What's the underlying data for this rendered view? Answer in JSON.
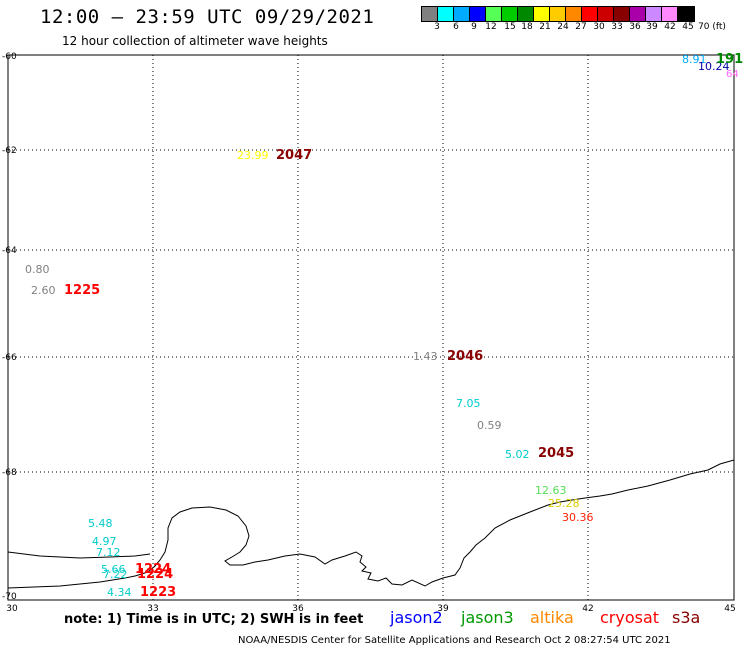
{
  "header": {
    "title": "12:00 – 23:59 UTC 09/29/2021",
    "subtitle": "12 hour collection of altimeter wave heights"
  },
  "colorbar": {
    "colors": [
      "#808080",
      "#00ffff",
      "#00aaff",
      "#0000ff",
      "#55ff55",
      "#00cc00",
      "#008800",
      "#ffff00",
      "#ffcc00",
      "#ff8800",
      "#ff0000",
      "#cc0000",
      "#880000",
      "#aa00aa",
      "#cc88ff",
      "#ff88ff",
      "#000000"
    ],
    "labels": [
      "3",
      "6",
      "9",
      "12",
      "15",
      "18",
      "21",
      "24",
      "27",
      "30",
      "33",
      "36",
      "39",
      "42",
      "45",
      "70 (ft)"
    ]
  },
  "axes": {
    "y_labels": [
      "-60",
      "-62",
      "-64",
      "-66",
      "-68",
      "-70"
    ],
    "x_labels": [
      "30",
      "33",
      "36",
      "39",
      "42",
      "45"
    ]
  },
  "observations": [
    {
      "text": "8.91",
      "color": "#00aaff"
    },
    {
      "text": "10.24",
      "color": "#0000aa"
    },
    {
      "text": "64",
      "color": "#ff66ff"
    },
    {
      "text": "23.99",
      "color": "#ffff00"
    },
    {
      "text": "0.80",
      "color": "#808080"
    },
    {
      "text": "2.60",
      "color": "#808080"
    },
    {
      "text": "1.43",
      "color": "#808080"
    },
    {
      "text": "7.05",
      "color": "#00cccc"
    },
    {
      "text": "0.59",
      "color": "#808080"
    },
    {
      "text": "5.02",
      "color": "#00cccc"
    },
    {
      "text": "12.63",
      "color": "#55dd55"
    },
    {
      "text": "25.28",
      "color": "#ddcc00"
    },
    {
      "text": "30.36",
      "color": "#ff2200"
    },
    {
      "text": "5.48",
      "color": "#00cccc"
    },
    {
      "text": "4.97",
      "color": "#00cccc"
    },
    {
      "text": "7.12",
      "color": "#00cccc"
    },
    {
      "text": "5.66",
      "color": "#00cccc"
    },
    {
      "text": "7.22",
      "color": "#00cccc"
    },
    {
      "text": "4.34",
      "color": "#00cccc"
    }
  ],
  "time_tags": [
    {
      "text": "191",
      "color": "#008800"
    },
    {
      "text": "2047",
      "color": "#880000"
    },
    {
      "text": "1225",
      "color": "#ff0000"
    },
    {
      "text": "2046",
      "color": "#880000"
    },
    {
      "text": "2045",
      "color": "#880000"
    },
    {
      "text": "1224",
      "color": "#ff0000"
    },
    {
      "text": "1224",
      "color": "#ff0000"
    },
    {
      "text": "1223",
      "color": "#ff0000"
    }
  ],
  "footer": {
    "note": "note:  1) Time is in UTC;  2) SWH is in feet",
    "satellites": [
      {
        "name": "jason2",
        "color": "#0000ff"
      },
      {
        "name": "jason3",
        "color": "#009900"
      },
      {
        "name": "altika",
        "color": "#ff8800"
      },
      {
        "name": "cryosat",
        "color": "#ff0000"
      },
      {
        "name": "s3a",
        "color": "#880000"
      }
    ],
    "credit": "NOAA/NESDIS Center for Satellite Applications and Research    Oct  2 08:27:54 UTC 2021"
  }
}
